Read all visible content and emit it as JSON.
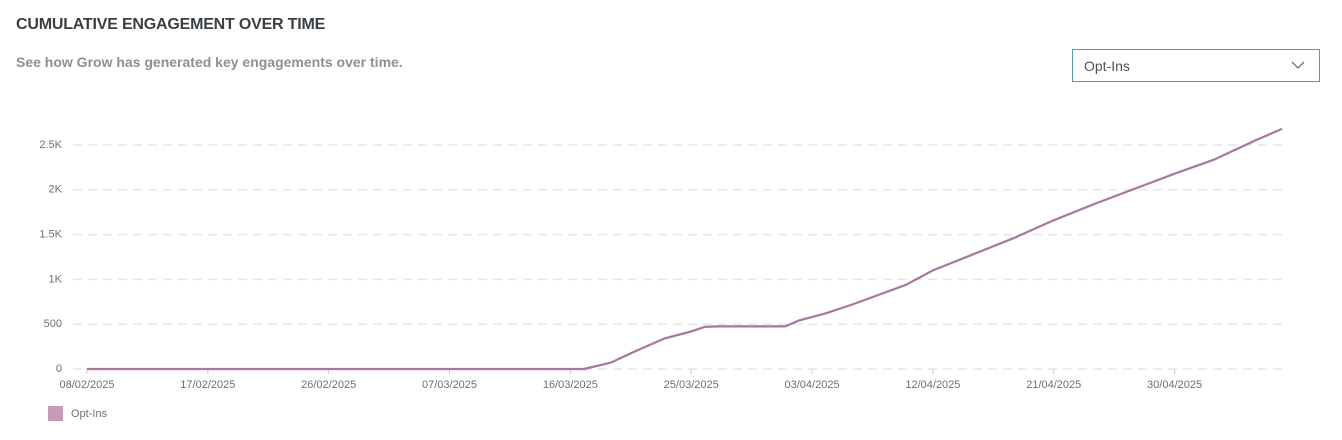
{
  "header": {
    "title": "CUMULATIVE ENGAGEMENT OVER TIME",
    "subtitle": "See how Grow has generated key engagements over time."
  },
  "controls": {
    "dropdown": {
      "selected": "Opt-Ins"
    }
  },
  "chart_data": {
    "type": "line",
    "x": [
      "08/02/2025",
      "16/03/2025",
      "17/03/2025",
      "19/03/2025",
      "21/03/2025",
      "23/03/2025",
      "25/03/2025",
      "26/03/2025",
      "27/03/2025",
      "01/04/2025",
      "02/04/2025",
      "04/04/2025",
      "06/04/2025",
      "08/04/2025",
      "10/04/2025",
      "12/04/2025",
      "15/04/2025",
      "18/04/2025",
      "21/04/2025",
      "24/04/2025",
      "27/04/2025",
      "30/04/2025",
      "03/05/2025",
      "06/05/2025",
      "08/05/2025"
    ],
    "series": [
      {
        "name": "Opt-Ins",
        "color": "#a8779b",
        "values": [
          0,
          0,
          0,
          70,
          210,
          340,
          420,
          470,
          475,
          475,
          540,
          620,
          720,
          830,
          940,
          1100,
          1280,
          1460,
          1660,
          1840,
          2010,
          2180,
          2340,
          2550,
          2680
        ]
      }
    ],
    "xlim": [
      "08/02/2025",
      "08/05/2025"
    ],
    "xticks": [
      "08/02/2025",
      "17/02/2025",
      "26/02/2025",
      "07/03/2025",
      "16/03/2025",
      "25/03/2025",
      "03/04/2025",
      "12/04/2025",
      "21/04/2025",
      "30/04/2025"
    ],
    "ylim": [
      0,
      2750
    ],
    "yticks": [
      0,
      500,
      {
        "value": 1000,
        "label": "1K"
      },
      {
        "value": 1500,
        "label": "1.5K"
      },
      {
        "value": 2000,
        "label": "2K"
      },
      {
        "value": 2500,
        "label": "2.5K"
      }
    ],
    "grid": true,
    "legend": "bottom-left",
    "legend_color": "#c99ab8"
  }
}
